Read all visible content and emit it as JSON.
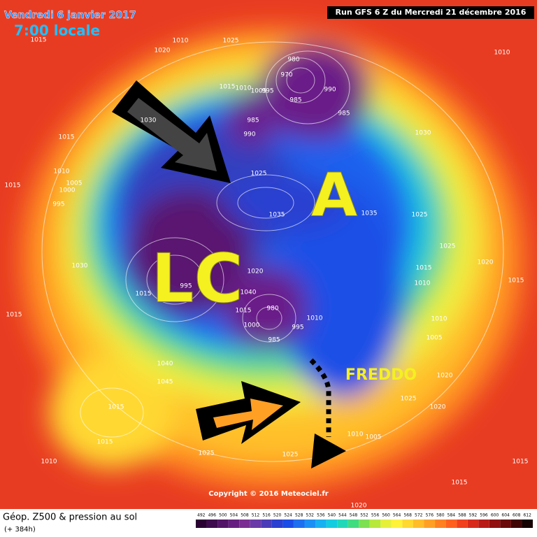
{
  "header": {
    "date": "Vendredi 6 janvier 2017",
    "time": "7:00 locale",
    "run": "Run GFS 6 Z du Mercredi 21 décembre 2016"
  },
  "annotations": {
    "high": "A",
    "low": "LC",
    "cold": "FREDDO"
  },
  "pressure_labels": [
    "1015",
    "1010",
    "1020",
    "1025",
    "1010",
    "980",
    "970",
    "990",
    "1015",
    "1010",
    "1005",
    "995",
    "985",
    "985",
    "985",
    "990",
    "1030",
    "1030",
    "1015",
    "1010",
    "1005",
    "1000",
    "1015",
    "995",
    "1025",
    "1035",
    "1035",
    "1025",
    "1025",
    "1020",
    "1015",
    "1010",
    "1015",
    "1030",
    "1020",
    "1015",
    "995",
    "1040",
    "980",
    "1015",
    "1000",
    "995",
    "1010",
    "985",
    "1010",
    "1005",
    "1015",
    "1040",
    "1045",
    "1020",
    "1025",
    "1020",
    "1015",
    "1015",
    "1010",
    "1025",
    "1025",
    "1010",
    "1005",
    "1015",
    "1015",
    "1020"
  ],
  "copyright": "Copyright © 2016 Meteociel.fr",
  "footer": {
    "title": "Géop. Z500 & pression au sol",
    "lead": "(+ 384h)"
  },
  "color_scale": {
    "values": [
      492,
      496,
      500,
      504,
      508,
      512,
      516,
      520,
      524,
      528,
      532,
      536,
      540,
      544,
      548,
      552,
      556,
      560,
      564,
      568,
      572,
      576,
      580,
      584,
      588,
      592,
      596,
      600,
      604,
      608,
      612
    ],
    "colors": [
      "#2a0033",
      "#3d0a4d",
      "#521466",
      "#661f80",
      "#7a2e91",
      "#6a3aa8",
      "#4a3cb8",
      "#2b3fd0",
      "#1a4ce6",
      "#1e6ef0",
      "#1a90f5",
      "#17b0f0",
      "#14cce0",
      "#20d8b8",
      "#40dc80",
      "#7ce050",
      "#b8e83c",
      "#e6f03a",
      "#fff23a",
      "#ffd830",
      "#ffbd2a",
      "#ffa024",
      "#ff8020",
      "#ff601e",
      "#f0401c",
      "#d82a1a",
      "#b81a16",
      "#901010",
      "#6a0a0a",
      "#400606",
      "#150202"
    ]
  }
}
